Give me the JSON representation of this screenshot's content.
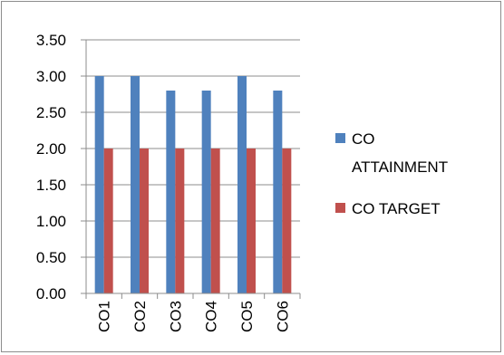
{
  "chart_data": {
    "type": "bar",
    "categories": [
      "CO1",
      "CO2",
      "CO3",
      "CO4",
      "CO5",
      "CO6"
    ],
    "series": [
      {
        "name": "CO ATTAINMENT",
        "values": [
          3.0,
          3.0,
          2.8,
          2.8,
          3.0,
          2.8
        ],
        "color": "#4f81bd"
      },
      {
        "name": "CO TARGET",
        "values": [
          2.0,
          2.0,
          2.0,
          2.0,
          2.0,
          2.0
        ],
        "color": "#c0504d"
      }
    ],
    "y_ticks": [
      "0.00",
      "0.50",
      "1.00",
      "1.50",
      "2.00",
      "2.50",
      "3.00",
      "3.50"
    ],
    "ylim": [
      0,
      3.5
    ],
    "grid": true,
    "legend_position": "right",
    "legend": {
      "series1_lines": [
        "CO",
        "ATTAINMENT"
      ],
      "series2_lines": [
        "CO TARGET"
      ]
    }
  }
}
